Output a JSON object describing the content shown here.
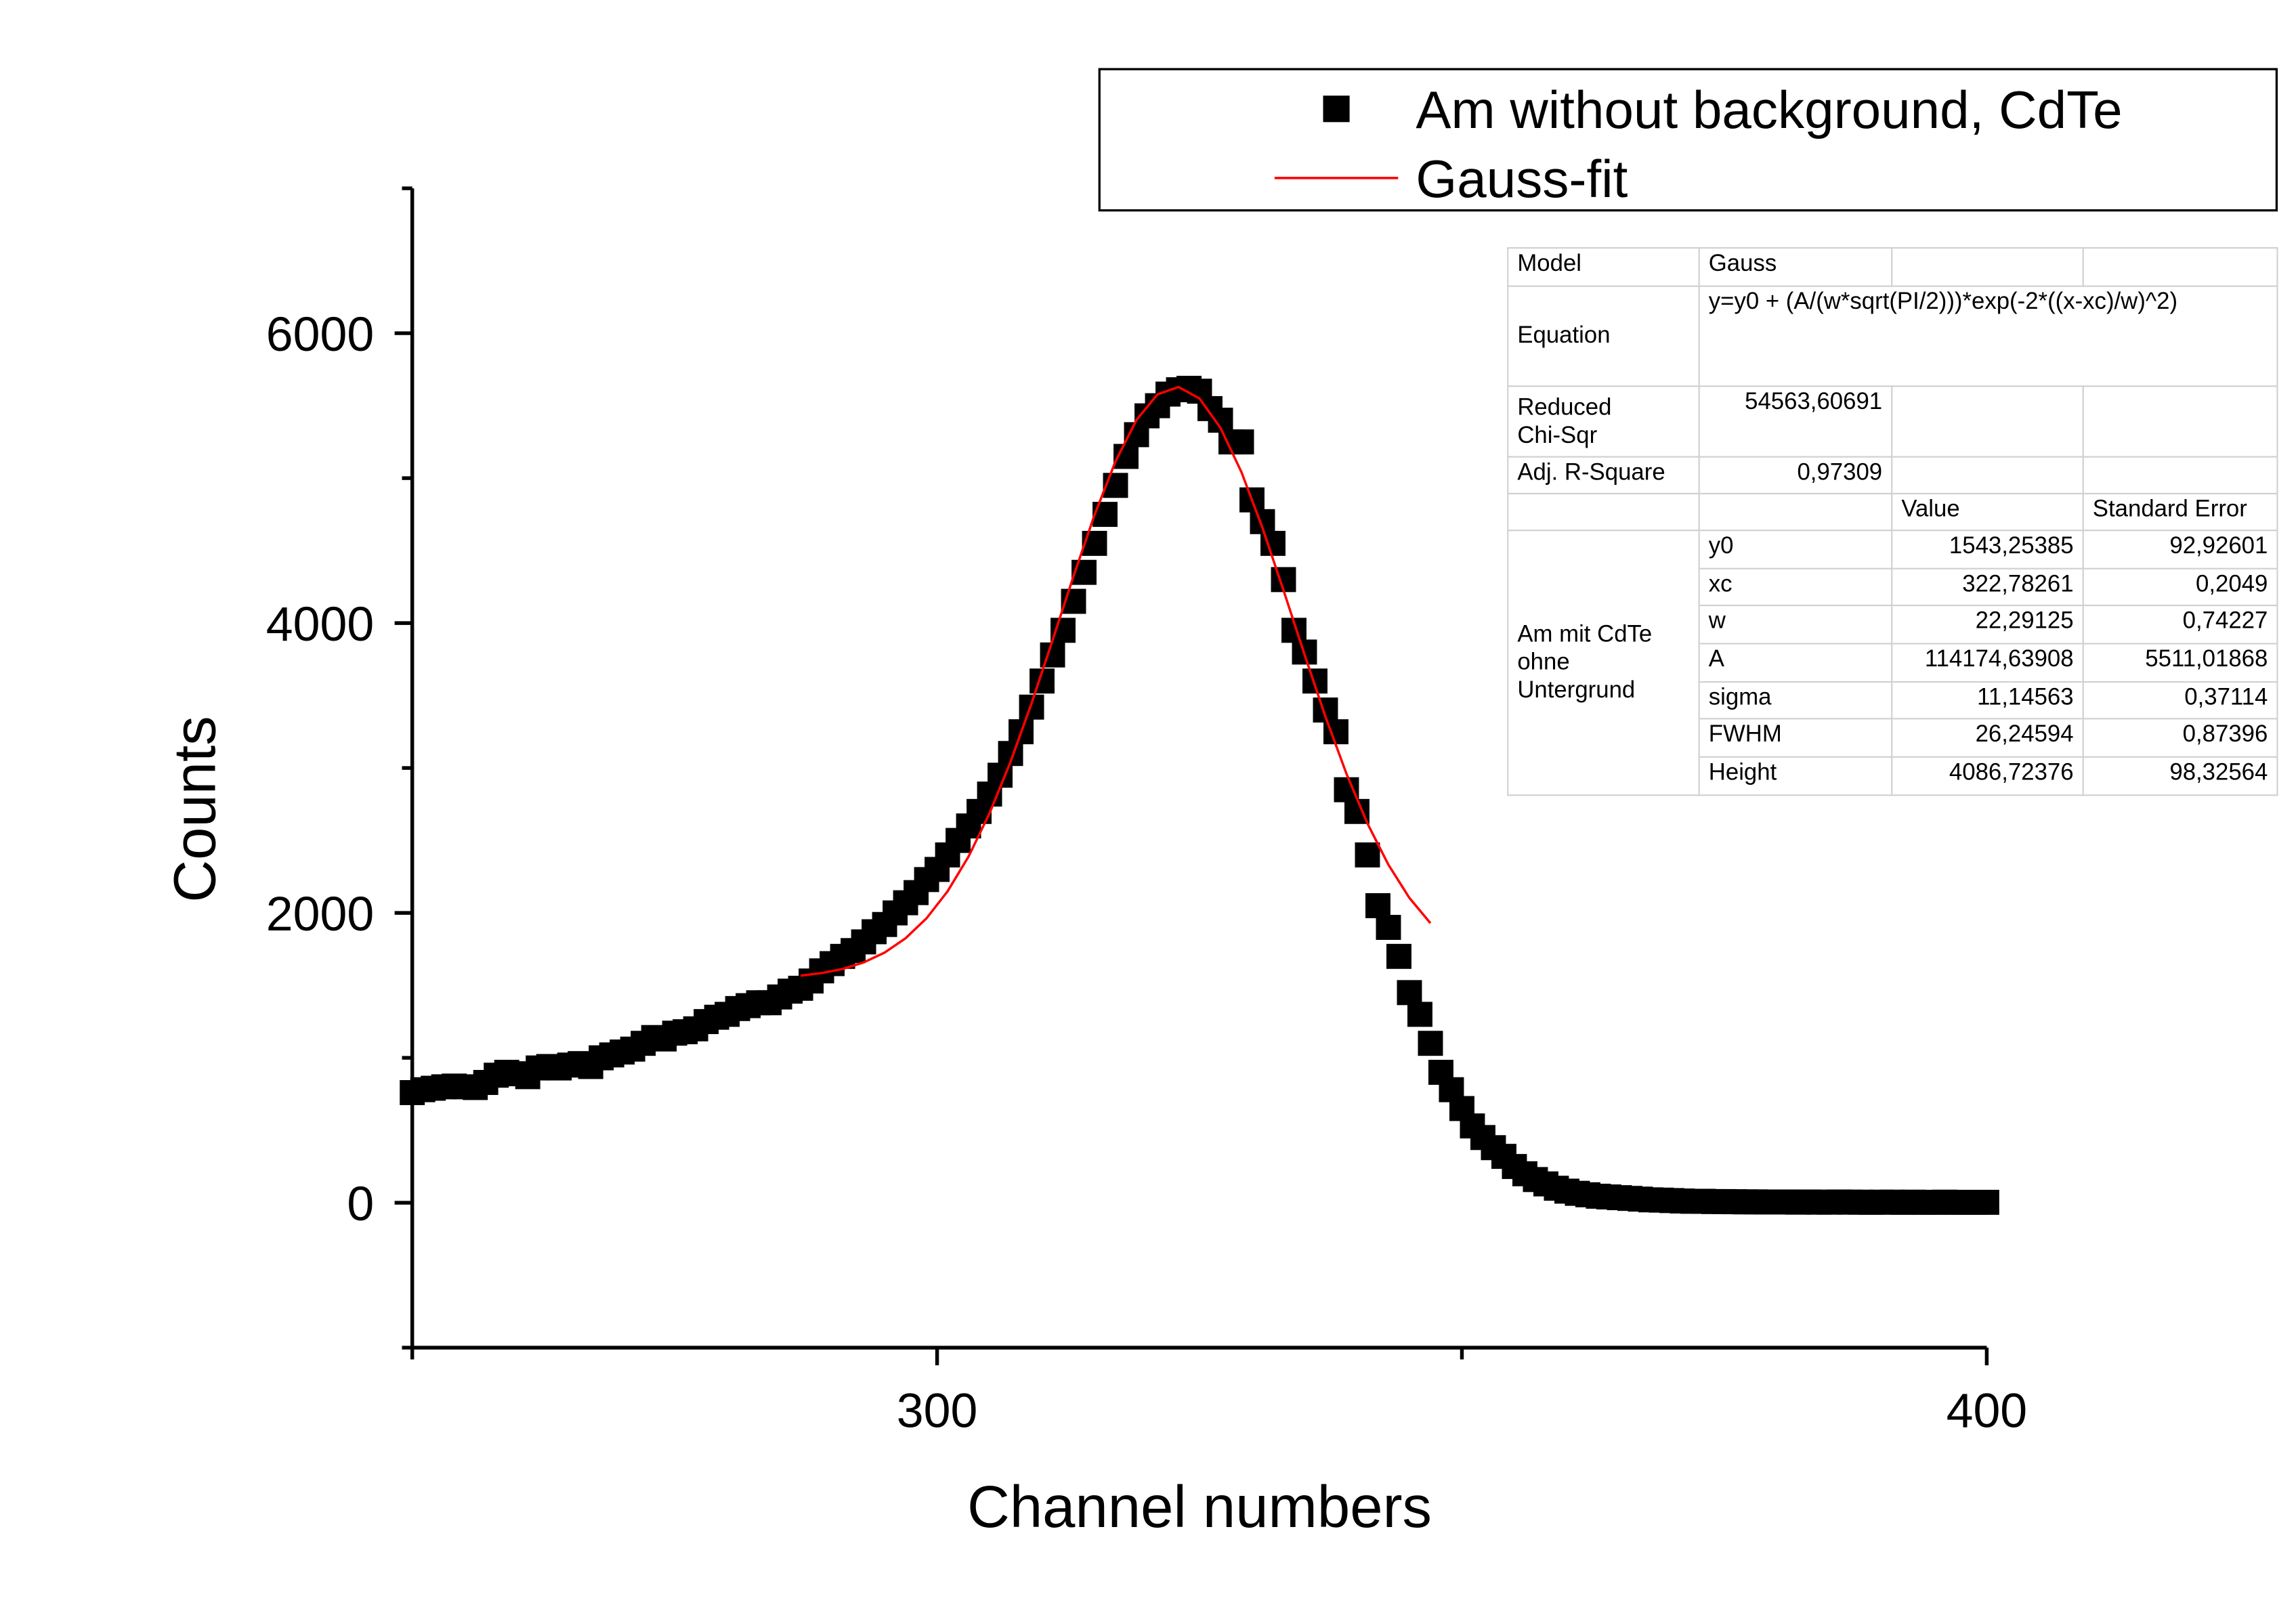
{
  "chart_data": {
    "type": "scatter",
    "xlabel": "Channel numbers",
    "ylabel": "Counts",
    "xlim": [
      250,
      400
    ],
    "ylim": [
      -1000,
      7000
    ],
    "xticks": [
      300,
      400
    ],
    "xminor_ticks": [
      250,
      350
    ],
    "yticks": [
      0,
      2000,
      4000,
      6000
    ],
    "yminor_ticks": [
      -1000,
      1000,
      3000,
      5000,
      7000
    ],
    "legend": "top-right",
    "series": [
      {
        "name": "Am without background, CdTe",
        "type": "scatter",
        "color": "#000000",
        "x": [
          250,
          251,
          252,
          253,
          254,
          255,
          256,
          257,
          258,
          259,
          260,
          261,
          262,
          263,
          264,
          265,
          266,
          267,
          268,
          269,
          270,
          271,
          272,
          273,
          274,
          275,
          276,
          277,
          278,
          279,
          280,
          281,
          282,
          283,
          284,
          285,
          286,
          287,
          288,
          289,
          290,
          291,
          292,
          293,
          294,
          295,
          296,
          297,
          298,
          299,
          300,
          301,
          302,
          303,
          304,
          305,
          306,
          307,
          308,
          309,
          310,
          311,
          312,
          313,
          314,
          315,
          316,
          317,
          318,
          319,
          320,
          321,
          322,
          323,
          324,
          325,
          326,
          327,
          328,
          329,
          330,
          331,
          332,
          333,
          334,
          335,
          336,
          337,
          338,
          339,
          340,
          341,
          342,
          343,
          344,
          345,
          346,
          347,
          348,
          349,
          350,
          351,
          352,
          353,
          354,
          355,
          356,
          357,
          358,
          359,
          360,
          361,
          362,
          363,
          364,
          365,
          366,
          367,
          368,
          369,
          370,
          371,
          372,
          373,
          374,
          375,
          376,
          377,
          378,
          379,
          380,
          381,
          382,
          383,
          384,
          385,
          386,
          387,
          388,
          389,
          390,
          391,
          392,
          393,
          394,
          395,
          396,
          397,
          398,
          399,
          400
        ],
        "values": [
          760,
          780,
          790,
          800,
          805,
          800,
          795,
          830,
          880,
          900,
          890,
          870,
          930,
          940,
          930,
          950,
          960,
          940,
          1000,
          1020,
          1040,
          1060,
          1100,
          1140,
          1130,
          1170,
          1180,
          1200,
          1250,
          1280,
          1300,
          1340,
          1360,
          1380,
          1380,
          1420,
          1460,
          1480,
          1530,
          1600,
          1650,
          1700,
          1740,
          1800,
          1870,
          1920,
          2000,
          2070,
          2140,
          2230,
          2300,
          2400,
          2500,
          2600,
          2700,
          2820,
          2950,
          3100,
          3250,
          3420,
          3600,
          3780,
          3950,
          4150,
          4350,
          4550,
          4750,
          4950,
          5150,
          5300,
          5430,
          5500,
          5580,
          5610,
          5620,
          5600,
          5480,
          5400,
          5250,
          5250,
          4850,
          4700,
          4550,
          4300,
          3950,
          3800,
          3600,
          3400,
          3250,
          2850,
          2700,
          2400,
          2050,
          1900,
          1700,
          1450,
          1300,
          1100,
          900,
          780,
          650,
          530,
          450,
          380,
          320,
          250,
          200,
          160,
          130,
          100,
          80,
          65,
          55,
          45,
          40,
          35,
          30,
          25,
          20,
          18,
          15,
          12,
          10,
          10,
          8,
          8,
          7,
          6,
          6,
          5,
          5,
          5,
          4,
          5,
          4,
          4,
          5,
          4,
          4,
          3,
          4,
          4,
          3,
          4,
          3,
          3,
          4,
          3,
          3,
          3,
          3
        ]
      },
      {
        "name": "Gauss-fit",
        "type": "line",
        "color": "#ff0000",
        "x": [
          287,
          289,
          291,
          293,
          295,
          297,
          299,
          301,
          303,
          305,
          307,
          309,
          311,
          313,
          315,
          317,
          319,
          321,
          323,
          325,
          327,
          329,
          331,
          333,
          335,
          337,
          339,
          341,
          343,
          345,
          347
        ],
        "values": [
          1567,
          1585,
          1613,
          1658,
          1726,
          1825,
          1963,
          2149,
          2389,
          2688,
          3043,
          3446,
          3881,
          4324,
          4746,
          5116,
          5402,
          5578,
          5629,
          5550,
          5347,
          5041,
          4657,
          4227,
          3784,
          3354,
          2960,
          2617,
          2332,
          2103,
          1929
        ]
      }
    ],
    "fit_table": {
      "model": [
        "Model",
        "Gauss"
      ],
      "equation": [
        "Equation",
        "y=y0 + (A/(w*sqrt(PI/2)))*exp(-2*((x-xc)/w)^2)"
      ],
      "chi_sqr": [
        "Reduced\nChi-Sqr",
        "54563,60691"
      ],
      "r_square": [
        "Adj. R-Square",
        "0,97309"
      ],
      "columns": [
        "Value",
        "Standard Error"
      ],
      "group": "Am mit CdTe\nohne\nUntergrund",
      "params": [
        [
          "y0",
          "1543,25385",
          "92,92601"
        ],
        [
          "xc",
          "322,78261",
          "0,2049"
        ],
        [
          "w",
          "22,29125",
          "0,74227"
        ],
        [
          "A",
          "114174,63908",
          "5511,01868"
        ],
        [
          "sigma",
          "11,14563",
          "0,37114"
        ],
        [
          "FWHM",
          "26,24594",
          "0,87396"
        ],
        [
          "Height",
          "4086,72376",
          "98,32564"
        ]
      ]
    }
  }
}
